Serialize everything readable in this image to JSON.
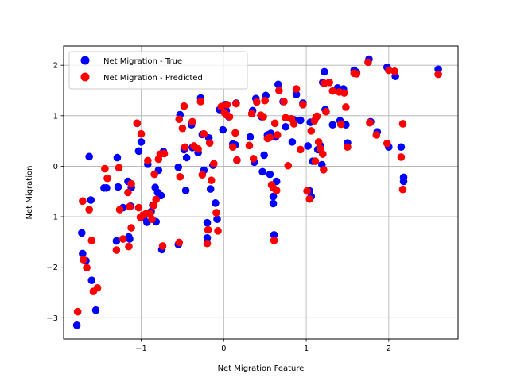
{
  "chart_data": {
    "type": "scatter",
    "xlabel": "Net Migration Feature",
    "ylabel": "Net Migration",
    "xlim": [
      -1.94,
      2.84
    ],
    "ylim": [
      -3.42,
      2.38
    ],
    "x_ticks": [
      -1,
      0,
      1,
      2
    ],
    "x_tick_labels": [
      "−1",
      "0",
      "1",
      "2"
    ],
    "y_ticks": [
      -3,
      -2,
      -1,
      0,
      1,
      2
    ],
    "y_tick_labels": [
      "−3",
      "−2",
      "−1",
      "0",
      "1",
      "2"
    ],
    "grid": true,
    "legend_position": "top-left",
    "series": [
      {
        "name": "Net Migration - True",
        "color": "#0000ff",
        "points": [
          [
            -1.78,
            -3.15
          ],
          [
            -1.72,
            -1.32
          ],
          [
            -1.71,
            -1.73
          ],
          [
            -1.67,
            -1.87
          ],
          [
            -1.63,
            0.19
          ],
          [
            -1.61,
            -0.67
          ],
          [
            -1.6,
            -2.26
          ],
          [
            -1.55,
            -2.85
          ],
          [
            -1.45,
            -0.43
          ],
          [
            -1.42,
            -0.43
          ],
          [
            -1.3,
            -1.48
          ],
          [
            -1.29,
            0.17
          ],
          [
            -1.28,
            -0.41
          ],
          [
            -1.22,
            -0.82
          ],
          [
            -1.16,
            -0.3
          ],
          [
            -1.15,
            -1.4
          ],
          [
            -1.14,
            -1.44
          ],
          [
            -1.13,
            -0.79
          ],
          [
            -1.12,
            -0.42
          ],
          [
            -1.05,
            0.85
          ],
          [
            -1.03,
            0.3
          ],
          [
            -1,
            0.48
          ],
          [
            -0.99,
            -1.0
          ],
          [
            -0.97,
            -1.02
          ],
          [
            -0.93,
            -1.11
          ],
          [
            -0.92,
            0.04
          ],
          [
            -0.88,
            -0.9
          ],
          [
            -0.86,
            -0.77
          ],
          [
            -0.83,
            -0.42
          ],
          [
            -0.82,
            -1.1
          ],
          [
            -0.8,
            -0.52
          ],
          [
            -0.79,
            -0.08
          ],
          [
            -0.76,
            -0.58
          ],
          [
            -0.75,
            -1.65
          ],
          [
            -0.73,
            0.29
          ],
          [
            -0.55,
            -0.02
          ],
          [
            -0.55,
            -1.55
          ],
          [
            -0.53,
            1.02
          ],
          [
            -0.48,
            0.33
          ],
          [
            -0.46,
            -0.48
          ],
          [
            -0.45,
            0.17
          ],
          [
            -0.39,
            0.82
          ],
          [
            -0.38,
            0.37
          ],
          [
            -0.31,
            0.27
          ],
          [
            -0.28,
            1.35
          ],
          [
            -0.26,
            0.63
          ],
          [
            -0.24,
            -0.08
          ],
          [
            -0.2,
            -1.42
          ],
          [
            -0.2,
            -1.12
          ],
          [
            -0.18,
            0.56
          ],
          [
            -0.16,
            -0.45
          ],
          [
            -0.13,
            0.02
          ],
          [
            -0.1,
            -0.73
          ],
          [
            -0.08,
            -1.05
          ],
          [
            -0.05,
            1.12
          ],
          [
            -0.01,
            0.72
          ],
          [
            0.02,
            1.22
          ],
          [
            0.03,
            1.1
          ],
          [
            0.06,
            0.98
          ],
          [
            0.11,
            0.44
          ],
          [
            0.14,
            0.42
          ],
          [
            0.15,
            1.25
          ],
          [
            0.16,
            0.12
          ],
          [
            0.32,
            0.58
          ],
          [
            0.35,
            1.1
          ],
          [
            0.37,
            0.08
          ],
          [
            0.39,
            1.34
          ],
          [
            0.46,
            0.98
          ],
          [
            0.47,
            -0.11
          ],
          [
            0.49,
            0.22
          ],
          [
            0.51,
            1.4
          ],
          [
            0.53,
            0.62
          ],
          [
            0.56,
            -0.16
          ],
          [
            0.57,
            0.65
          ],
          [
            0.6,
            -0.6
          ],
          [
            0.6,
            -0.74
          ],
          [
            0.61,
            -1.36
          ],
          [
            0.63,
            0.58
          ],
          [
            0.64,
            -0.3
          ],
          [
            0.66,
            1.62
          ],
          [
            0.72,
            1.28
          ],
          [
            0.75,
            0.78
          ],
          [
            0.83,
            0.48
          ],
          [
            0.85,
            0.92
          ],
          [
            0.88,
            1.42
          ],
          [
            0.93,
            0.91
          ],
          [
            0.96,
            1.25
          ],
          [
            1.02,
            0.4
          ],
          [
            1.04,
            -0.49
          ],
          [
            1.05,
            0.87
          ],
          [
            1.06,
            -0.6
          ],
          [
            1.08,
            0.1
          ],
          [
            1.12,
            0.97
          ],
          [
            1.14,
            0.33
          ],
          [
            1.17,
            0.41
          ],
          [
            1.19,
            0.03
          ],
          [
            1.2,
            1.66
          ],
          [
            1.22,
            1.87
          ],
          [
            1.23,
            1.12
          ],
          [
            1.32,
            0.82
          ],
          [
            1.38,
            1.55
          ],
          [
            1.41,
            0.9
          ],
          [
            1.45,
            1.53
          ],
          [
            1.48,
            0.82
          ],
          [
            1.5,
            0.46
          ],
          [
            1.58,
            1.9
          ],
          [
            1.61,
            1.86
          ],
          [
            1.76,
            2.12
          ],
          [
            1.78,
            0.88
          ],
          [
            1.86,
            0.68
          ],
          [
            1.98,
            1.96
          ],
          [
            2.0,
            0.38
          ],
          [
            2.08,
            1.78
          ],
          [
            2.15,
            0.38
          ],
          [
            2.18,
            -0.22
          ],
          [
            2.18,
            -0.3
          ],
          [
            2.6,
            1.92
          ]
        ]
      },
      {
        "name": "Net Migration - Predicted",
        "color": "#ff0000",
        "points": [
          [
            -1.77,
            -2.88
          ],
          [
            -1.71,
            -0.69
          ],
          [
            -1.7,
            -1.85
          ],
          [
            -1.66,
            -2.01
          ],
          [
            -1.63,
            -0.86
          ],
          [
            -1.6,
            -1.47
          ],
          [
            -1.58,
            -2.48
          ],
          [
            -1.53,
            -2.41
          ],
          [
            -1.44,
            -0.05
          ],
          [
            -1.41,
            -0.24
          ],
          [
            -1.3,
            -1.66
          ],
          [
            -1.27,
            -0.03
          ],
          [
            -1.26,
            -0.86
          ],
          [
            -1.22,
            -1.44
          ],
          [
            -1.16,
            -0.52
          ],
          [
            -1.15,
            -1.59
          ],
          [
            -1.14,
            -0.8
          ],
          [
            -1.12,
            -0.35
          ],
          [
            -1.12,
            -1.22
          ],
          [
            -1.05,
            0.85
          ],
          [
            -1.03,
            -0.82
          ],
          [
            -1.01,
            -1.01
          ],
          [
            -1.0,
            0.64
          ],
          [
            -0.98,
            -0.97
          ],
          [
            -0.94,
            -0.94
          ],
          [
            -0.92,
            0.11
          ],
          [
            -0.89,
            -0.94
          ],
          [
            -0.87,
            -1.05
          ],
          [
            -0.85,
            -0.78
          ],
          [
            -0.84,
            -0.16
          ],
          [
            -0.82,
            -0.66
          ],
          [
            -0.79,
            0.14
          ],
          [
            -0.77,
            0.24
          ],
          [
            -0.74,
            -1.58
          ],
          [
            -0.72,
            0.25
          ],
          [
            -0.54,
            0.93
          ],
          [
            -0.54,
            -1.51
          ],
          [
            -0.53,
            -0.21
          ],
          [
            -0.5,
            0.75
          ],
          [
            -0.48,
            1.19
          ],
          [
            -0.47,
            0.38
          ],
          [
            -0.38,
            0.88
          ],
          [
            -0.36,
            0.4
          ],
          [
            -0.31,
            0.34
          ],
          [
            -0.28,
            1.28
          ],
          [
            -0.26,
            -0.17
          ],
          [
            -0.24,
            0.64
          ],
          [
            -0.2,
            -1.53
          ],
          [
            -0.19,
            -1.26
          ],
          [
            -0.17,
            0.46
          ],
          [
            -0.15,
            -0.28
          ],
          [
            -0.12,
            0.05
          ],
          [
            -0.09,
            -0.92
          ],
          [
            -0.07,
            -1.28
          ],
          [
            -0.03,
            1.18
          ],
          [
            0.01,
            1.06
          ],
          [
            0.03,
            1.02
          ],
          [
            0.04,
            1.22
          ],
          [
            0.07,
            0.98
          ],
          [
            0.11,
            0.38
          ],
          [
            0.14,
            0.66
          ],
          [
            0.15,
            1.24
          ],
          [
            0.16,
            0.12
          ],
          [
            0.31,
            0.41
          ],
          [
            0.34,
            1.04
          ],
          [
            0.36,
            0.15
          ],
          [
            0.4,
            1.27
          ],
          [
            0.45,
            1.01
          ],
          [
            0.48,
            0.98
          ],
          [
            0.5,
            1.3
          ],
          [
            0.53,
            0.55
          ],
          [
            0.56,
            0.57
          ],
          [
            0.58,
            -0.37
          ],
          [
            0.6,
            -0.43
          ],
          [
            0.61,
            -1.47
          ],
          [
            0.62,
            0.85
          ],
          [
            0.64,
            -0.48
          ],
          [
            0.65,
            0.62
          ],
          [
            0.67,
            1.5
          ],
          [
            0.73,
            1.28
          ],
          [
            0.75,
            0.96
          ],
          [
            0.78,
            0.01
          ],
          [
            0.82,
            0.94
          ],
          [
            0.85,
            0.84
          ],
          [
            0.88,
            1.53
          ],
          [
            0.93,
            0.33
          ],
          [
            0.96,
            1.22
          ],
          [
            1.01,
            -0.49
          ],
          [
            1.04,
            -0.65
          ],
          [
            1.06,
            0.7
          ],
          [
            1.1,
            0.9
          ],
          [
            1.11,
            0.1
          ],
          [
            1.13,
            0.99
          ],
          [
            1.15,
            0.48
          ],
          [
            1.17,
            0.35
          ],
          [
            1.2,
            0.24
          ],
          [
            1.21,
            -0.07
          ],
          [
            1.22,
            1.64
          ],
          [
            1.24,
            1.08
          ],
          [
            1.28,
            1.66
          ],
          [
            1.32,
            1.49
          ],
          [
            1.4,
            1.47
          ],
          [
            1.42,
            0.83
          ],
          [
            1.46,
            1.45
          ],
          [
            1.48,
            1.17
          ],
          [
            1.5,
            0.38
          ],
          [
            1.58,
            1.84
          ],
          [
            1.61,
            1.83
          ],
          [
            1.75,
            2.06
          ],
          [
            1.77,
            0.86
          ],
          [
            1.85,
            0.62
          ],
          [
            1.98,
            0.45
          ],
          [
            2.0,
            1.9
          ],
          [
            2.07,
            1.88
          ],
          [
            2.15,
            0.18
          ],
          [
            2.17,
            0.84
          ],
          [
            2.17,
            -0.46
          ],
          [
            2.6,
            1.82
          ]
        ]
      }
    ]
  }
}
